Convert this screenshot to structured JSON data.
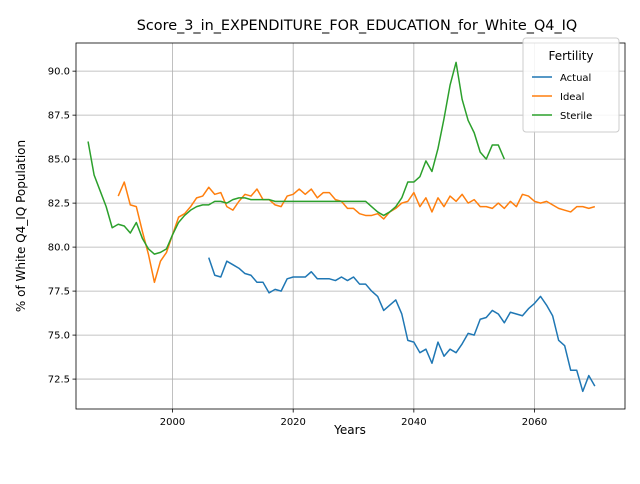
{
  "chart_data": {
    "type": "line",
    "title": "Score_3_in_EXPENDITURE_FOR_EDUCATION_for_White_Q4_IQ",
    "xlabel": "Years",
    "ylabel": "% of White Q4_IQ Population",
    "xlim": [
      1984,
      2075
    ],
    "ylim": [
      70.8,
      91.6
    ],
    "x_ticks": [
      2000,
      2020,
      2040,
      2060
    ],
    "y_ticks": [
      72.5,
      75.0,
      77.5,
      80.0,
      82.5,
      85.0,
      87.5,
      90.0
    ],
    "x_tick_labels": [
      "2000",
      "2020",
      "2040",
      "2060"
    ],
    "y_tick_labels": [
      "72.5",
      "75.0",
      "77.5",
      "80.0",
      "82.5",
      "85.0",
      "87.5",
      "90.0"
    ],
    "grid": true,
    "legend": {
      "title": "Fertility",
      "placement": "top-right"
    },
    "series": [
      {
        "name": "Actual",
        "color": "#1f77b4",
        "x": [
          2006,
          2007,
          2008,
          2009,
          2010,
          2011,
          2012,
          2013,
          2014,
          2015,
          2016,
          2017,
          2018,
          2019,
          2020,
          2021,
          2022,
          2023,
          2024,
          2025,
          2026,
          2027,
          2028,
          2029,
          2030,
          2031,
          2032,
          2033,
          2034,
          2035,
          2036,
          2037,
          2038,
          2039,
          2040,
          2041,
          2042,
          2043,
          2044,
          2045,
          2046,
          2047,
          2048,
          2049,
          2050,
          2051,
          2052,
          2053,
          2054,
          2055,
          2056,
          2057,
          2058,
          2059,
          2060,
          2061,
          2062,
          2063,
          2064,
          2065,
          2066,
          2067,
          2068,
          2069,
          2070
        ],
        "y": [
          79.4,
          78.4,
          78.3,
          79.2,
          79.0,
          78.8,
          78.5,
          78.4,
          78.0,
          78.0,
          77.4,
          77.6,
          77.5,
          78.2,
          78.3,
          78.3,
          78.3,
          78.6,
          78.2,
          78.2,
          78.2,
          78.1,
          78.3,
          78.1,
          78.3,
          77.9,
          77.9,
          77.5,
          77.2,
          76.4,
          76.7,
          77.0,
          76.2,
          74.7,
          74.6,
          74.0,
          74.2,
          73.4,
          74.6,
          73.8,
          74.2,
          74.0,
          74.5,
          75.1,
          75.0,
          75.9,
          76.0,
          76.4,
          76.2,
          75.7,
          76.3,
          76.2,
          76.1,
          76.5,
          76.8,
          77.2,
          76.7,
          76.1,
          74.7,
          74.4,
          73.0,
          73.0,
          71.8,
          72.7,
          72.1
        ]
      },
      {
        "name": "Ideal",
        "color": "#ff7f0e",
        "x": [
          1991,
          1992,
          1993,
          1994,
          1995,
          1996,
          1997,
          1998,
          1999,
          2000,
          2001,
          2002,
          2003,
          2004,
          2005,
          2006,
          2007,
          2008,
          2009,
          2010,
          2011,
          2012,
          2013,
          2014,
          2015,
          2016,
          2017,
          2018,
          2019,
          2020,
          2021,
          2022,
          2023,
          2024,
          2025,
          2026,
          2027,
          2028,
          2029,
          2030,
          2031,
          2032,
          2033,
          2034,
          2035,
          2036,
          2037,
          2038,
          2039,
          2040,
          2041,
          2042,
          2043,
          2044,
          2045,
          2046,
          2047,
          2048,
          2049,
          2050,
          2051,
          2052,
          2053,
          2054,
          2055,
          2056,
          2057,
          2058,
          2059,
          2060,
          2061,
          2062,
          2063,
          2064,
          2065,
          2066,
          2067,
          2068,
          2069,
          2070
        ],
        "y": [
          82.9,
          83.7,
          82.4,
          82.3,
          80.9,
          79.6,
          78.0,
          79.2,
          79.7,
          80.7,
          81.7,
          81.9,
          82.3,
          82.8,
          82.9,
          83.4,
          83.0,
          83.1,
          82.3,
          82.1,
          82.6,
          83.0,
          82.9,
          83.3,
          82.7,
          82.7,
          82.4,
          82.3,
          82.9,
          83.0,
          83.3,
          83.0,
          83.3,
          82.8,
          83.1,
          83.1,
          82.7,
          82.6,
          82.2,
          82.2,
          81.9,
          81.8,
          81.8,
          81.9,
          81.6,
          82.0,
          82.2,
          82.5,
          82.6,
          83.1,
          82.3,
          82.8,
          82.0,
          82.8,
          82.3,
          82.9,
          82.6,
          83.0,
          82.5,
          82.7,
          82.3,
          82.3,
          82.2,
          82.5,
          82.2,
          82.6,
          82.3,
          83.0,
          82.9,
          82.6,
          82.5,
          82.6,
          82.4,
          82.2,
          82.1,
          82.0,
          82.3,
          82.3,
          82.2,
          82.3
        ]
      },
      {
        "name": "Sterile",
        "color": "#2ca02c",
        "x": [
          1986,
          1987,
          1988,
          1989,
          1990,
          1991,
          1992,
          1993,
          1994,
          1995,
          1996,
          1997,
          1998,
          1999,
          2000,
          2001,
          2002,
          2003,
          2004,
          2005,
          2006,
          2007,
          2008,
          2009,
          2010,
          2011,
          2012,
          2013,
          2014,
          2015,
          2016,
          2017,
          2018,
          2019,
          2020,
          2021,
          2022,
          2023,
          2024,
          2025,
          2026,
          2027,
          2028,
          2029,
          2030,
          2031,
          2032,
          2033,
          2034,
          2035,
          2036,
          2037,
          2038,
          2039,
          2040,
          2041,
          2042,
          2043,
          2044,
          2045,
          2046,
          2047,
          2048,
          2049,
          2050,
          2051,
          2052,
          2053,
          2054,
          2055
        ],
        "y": [
          86.0,
          84.1,
          83.2,
          82.3,
          81.1,
          81.3,
          81.2,
          80.8,
          81.4,
          80.5,
          79.9,
          79.6,
          79.7,
          79.9,
          80.7,
          81.4,
          81.8,
          82.1,
          82.3,
          82.4,
          82.4,
          82.6,
          82.6,
          82.5,
          82.7,
          82.8,
          82.8,
          82.7,
          82.7,
          82.7,
          82.7,
          82.6,
          82.6,
          82.6,
          82.6,
          82.6,
          82.6,
          82.6,
          82.6,
          82.6,
          82.6,
          82.6,
          82.6,
          82.6,
          82.6,
          82.6,
          82.6,
          82.3,
          82.0,
          81.8,
          82.0,
          82.3,
          82.8,
          83.7,
          83.7,
          84.0,
          84.9,
          84.3,
          85.6,
          87.3,
          89.2,
          90.5,
          88.4,
          87.2,
          86.5,
          85.4,
          85.0,
          85.8,
          85.8,
          85.0
        ]
      }
    ]
  }
}
